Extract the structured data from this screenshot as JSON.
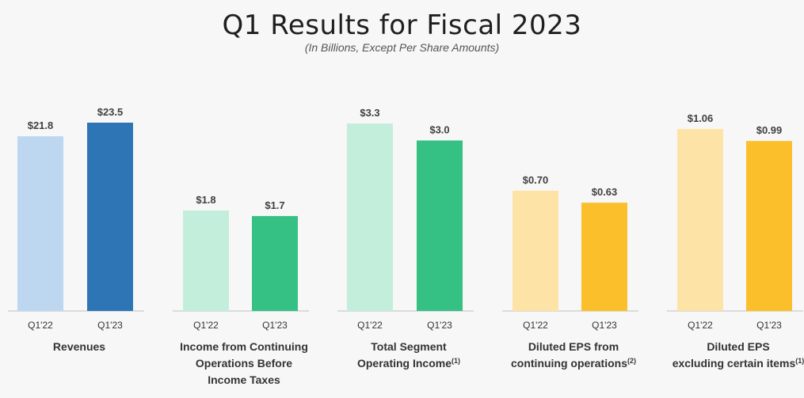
{
  "title": "Q1 Results for Fiscal 2023",
  "subtitle": "(In Billions, Except Per Share Amounts)",
  "chart_data": [
    {
      "type": "bar",
      "group_label": [
        "Revenues"
      ],
      "footnote": "",
      "categories": [
        "Q1'22",
        "Q1'23"
      ],
      "values": [
        21.8,
        23.5
      ],
      "value_labels": [
        "$21.8",
        "$23.5"
      ],
      "colors": [
        "#bdd7f0",
        "#2e75b6"
      ]
    },
    {
      "type": "bar",
      "group_label": [
        "Income from Continuing",
        "Operations Before",
        "Income Taxes"
      ],
      "footnote": "",
      "categories": [
        "Q1'22",
        "Q1'23"
      ],
      "values": [
        1.8,
        1.7
      ],
      "value_labels": [
        "$1.8",
        "$1.7"
      ],
      "colors": [
        "#c3eedc",
        "#35c084"
      ]
    },
    {
      "type": "bar",
      "group_label": [
        "Total Segment",
        "Operating Income"
      ],
      "footnote": "(1)",
      "categories": [
        "Q1'22",
        "Q1'23"
      ],
      "values": [
        3.3,
        3.0
      ],
      "value_labels": [
        "$3.3",
        "$3.0"
      ],
      "colors": [
        "#c3eedc",
        "#35c084"
      ]
    },
    {
      "type": "bar",
      "group_label": [
        "Diluted EPS from",
        "continuing operations"
      ],
      "footnote": "(2)",
      "categories": [
        "Q1'22",
        "Q1'23"
      ],
      "values": [
        0.7,
        0.63
      ],
      "value_labels": [
        "$0.70",
        "$0.63"
      ],
      "colors": [
        "#fde4a6",
        "#fbbf2c"
      ]
    },
    {
      "type": "bar",
      "group_label": [
        "Diluted EPS",
        "excluding certain items"
      ],
      "footnote": "(1)",
      "categories": [
        "Q1'22",
        "Q1'23"
      ],
      "values": [
        1.06,
        0.99
      ],
      "value_labels": [
        "$1.06",
        "$0.99"
      ],
      "colors": [
        "#fde4a6",
        "#fbbf2c"
      ]
    }
  ]
}
